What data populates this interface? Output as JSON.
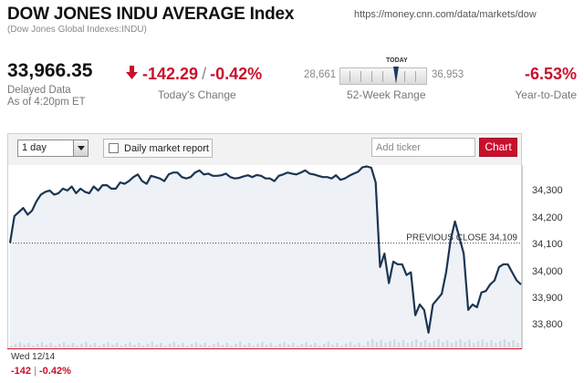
{
  "header": {
    "title": "DOW JONES INDU AVERAGE Index",
    "subtitle": "(Dow Jones Global Indexes:INDU)",
    "url": "https://money.cnn.com/data/markets/dow"
  },
  "quote": {
    "price": "33,966.35",
    "delayed_line1": "Delayed Data",
    "delayed_line2": "As of 4:20pm ET",
    "change": "-142.29",
    "change_sep": "/",
    "change_pct": "-0.42%",
    "change_label": "Today's Change",
    "range_low": "28,661",
    "range_high": "36,953",
    "range_today_label": "TODAY",
    "range_label": "52-Week Range",
    "ytd": "-6.53%",
    "ytd_label": "Year-to-Date"
  },
  "toolbar": {
    "period_value": "1 day",
    "report_label": "Daily market report",
    "ticker_placeholder": "Add ticker",
    "chart_button_label": "Chart"
  },
  "chart_footer": {
    "date": "Wed 12/14",
    "change": "-142",
    "pipe": "|",
    "change_pct": "-0.42%"
  },
  "chart_data": {
    "type": "line",
    "y_ticks": [
      "34,300",
      "34,200",
      "34,100",
      "34,000",
      "33,900",
      "33,800"
    ],
    "ylim": [
      33720,
      34400
    ],
    "previous_close_label": "PREVIOUS CLOSE 34,109",
    "previous_close": 34109,
    "x": [
      0,
      1,
      2,
      3,
      4,
      5,
      6,
      7,
      8,
      9,
      10,
      11,
      12,
      13,
      14,
      15,
      16,
      17,
      18,
      19,
      20,
      21,
      22,
      23,
      24,
      25,
      26,
      27,
      28,
      29,
      30,
      31,
      32,
      33,
      34,
      35,
      36,
      37,
      38,
      39,
      40,
      41,
      42,
      43,
      44,
      45,
      46,
      47,
      48,
      49,
      50,
      51,
      52,
      53,
      54,
      55,
      56,
      57,
      58,
      59,
      60,
      61,
      62,
      63,
      64,
      65,
      66,
      67,
      68,
      69,
      70,
      71,
      72,
      73,
      74,
      75,
      76,
      77,
      78,
      79,
      80,
      81,
      82,
      83,
      84,
      85,
      86,
      87,
      88,
      89,
      90,
      91,
      92,
      93,
      94,
      95,
      96,
      97,
      98,
      99,
      100,
      101,
      102,
      103,
      104,
      105,
      106,
      107,
      108,
      109,
      110,
      111,
      112,
      113,
      114,
      115,
      116
    ],
    "values": [
      34110,
      34210,
      34225,
      34240,
      34215,
      34230,
      34265,
      34290,
      34300,
      34305,
      34290,
      34295,
      34312,
      34305,
      34320,
      34295,
      34312,
      34300,
      34295,
      34320,
      34305,
      34325,
      34325,
      34312,
      34312,
      34335,
      34330,
      34340,
      34355,
      34365,
      34340,
      34330,
      34360,
      34355,
      34350,
      34340,
      34365,
      34372,
      34372,
      34355,
      34350,
      34355,
      34372,
      34380,
      34365,
      34368,
      34360,
      34360,
      34362,
      34368,
      34355,
      34350,
      34352,
      34358,
      34362,
      34355,
      34363,
      34360,
      34350,
      34350,
      34340,
      34360,
      34365,
      34372,
      34368,
      34365,
      34372,
      34380,
      34368,
      34365,
      34360,
      34355,
      34355,
      34350,
      34362,
      34345,
      34350,
      34360,
      34368,
      34375,
      34392,
      34395,
      34390,
      34335,
      34020,
      34070,
      33960,
      34040,
      34030,
      34030,
      33990,
      34000,
      33840,
      33880,
      33860,
      33775,
      33880,
      33900,
      33920,
      34000,
      34120,
      34190,
      34130,
      34070,
      33860,
      33880,
      33870,
      33925,
      33930,
      33955,
      33970,
      34020,
      34030,
      34030,
      34000,
      33970,
      33955
    ],
    "volume_marks": 116,
    "grid": false,
    "legend": "none"
  }
}
